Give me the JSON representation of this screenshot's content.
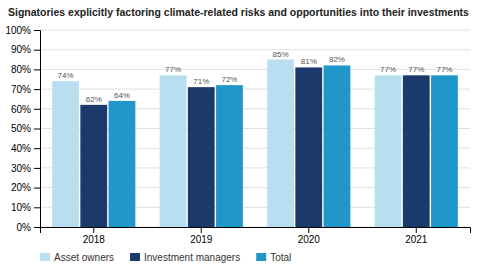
{
  "chart_data": {
    "type": "bar",
    "title": "Signatories explicitly factoring climate-related risks and opportunities into their investments",
    "categories": [
      "2018",
      "2019",
      "2020",
      "2021"
    ],
    "series": [
      {
        "name": "Asset owners",
        "color": "#b8dff0",
        "values": [
          74,
          77,
          85,
          77
        ],
        "value_labels": [
          "74%",
          "77%",
          "85%",
          "77%"
        ]
      },
      {
        "name": "Investment managers",
        "color": "#1b3a6b",
        "values": [
          62,
          71,
          81,
          77
        ],
        "value_labels": [
          "62%",
          "71%",
          "81%",
          "77%"
        ]
      },
      {
        "name": "Total",
        "color": "#2196c8",
        "values": [
          64,
          72,
          82,
          77
        ],
        "value_labels": [
          "64%",
          "72%",
          "82%",
          "77%"
        ]
      }
    ],
    "ylim": [
      0,
      100
    ],
    "yticks": [
      {
        "value": 0,
        "label": "0%"
      },
      {
        "value": 10,
        "label": "10%"
      },
      {
        "value": 20,
        "label": "20%"
      },
      {
        "value": 30,
        "label": "30%"
      },
      {
        "value": 40,
        "label": "40%"
      },
      {
        "value": 50,
        "label": "50%"
      },
      {
        "value": 60,
        "label": "60%"
      },
      {
        "value": 70,
        "label": "70%"
      },
      {
        "value": 80,
        "label": "80%"
      },
      {
        "value": 90,
        "label": "90%"
      },
      {
        "value": 100,
        "label": "100%"
      }
    ],
    "grid": true,
    "legend": "bottom",
    "data_labels": true
  }
}
